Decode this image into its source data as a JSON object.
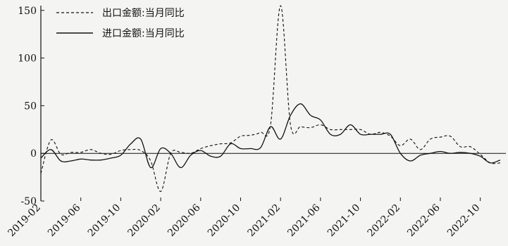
{
  "chart_data": {
    "type": "line",
    "title": "",
    "xlabel": "",
    "ylabel": "",
    "ylim": [
      -50,
      155
    ],
    "yticks": [
      -50,
      0,
      50,
      100,
      150
    ],
    "x": [
      "2019-02",
      "2019-03",
      "2019-04",
      "2019-05",
      "2019-06",
      "2019-07",
      "2019-08",
      "2019-09",
      "2019-10",
      "2019-11",
      "2019-12",
      "2020-01",
      "2020-02",
      "2020-03",
      "2020-04",
      "2020-05",
      "2020-06",
      "2020-07",
      "2020-08",
      "2020-09",
      "2020-10",
      "2020-11",
      "2020-12",
      "2021-01",
      "2021-02",
      "2021-03",
      "2021-04",
      "2021-05",
      "2021-06",
      "2021-07",
      "2021-08",
      "2021-09",
      "2021-10",
      "2021-11",
      "2021-12",
      "2022-01",
      "2022-02",
      "2022-03",
      "2022-04",
      "2022-05",
      "2022-06",
      "2022-07",
      "2022-08",
      "2022-09",
      "2022-10",
      "2022-11",
      "2022-12"
    ],
    "xticks": [
      "2019-02",
      "2019-06",
      "2019-10",
      "2020-02",
      "2020-06",
      "2020-10",
      "2021-02",
      "2021-06",
      "2021-10",
      "2022-02",
      "2022-06",
      "2022-10"
    ],
    "legend_position": "top-left",
    "series": [
      {
        "name": "出口金额:当月同比",
        "style": "dashed",
        "color": "#111111",
        "values": [
          -21,
          14,
          -1,
          1,
          1,
          4,
          0,
          -1,
          3,
          4,
          3,
          -8,
          -40,
          0,
          1,
          0,
          5,
          8,
          10,
          11,
          18,
          19,
          22,
          30,
          155,
          30,
          28,
          27,
          30,
          25,
          25,
          25,
          25,
          20,
          22,
          18,
          8,
          15,
          4,
          15,
          17,
          18,
          7,
          7,
          -1,
          -10,
          -10
        ]
      },
      {
        "name": "进口金额:当月同比",
        "style": "solid",
        "color": "#111111",
        "values": [
          -5,
          4,
          -8,
          -8,
          -6,
          -7,
          -7,
          -5,
          -2,
          10,
          15,
          -15,
          5,
          0,
          -15,
          -2,
          3,
          -3,
          -3,
          10,
          5,
          5,
          6,
          28,
          15,
          40,
          52,
          40,
          35,
          20,
          20,
          30,
          20,
          20,
          20,
          20,
          0,
          -8,
          -2,
          0,
          2,
          0,
          1,
          0,
          -3,
          -10,
          -7
        ]
      }
    ]
  }
}
